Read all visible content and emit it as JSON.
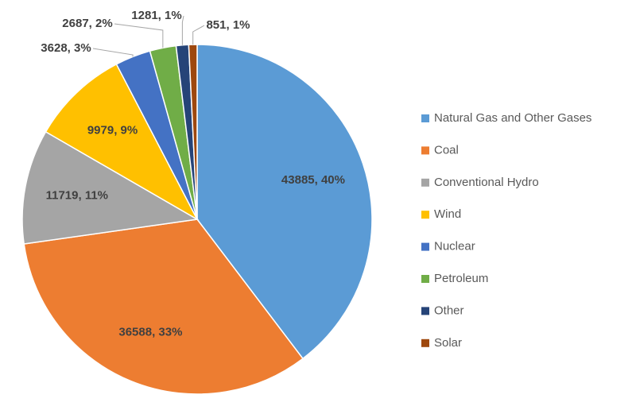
{
  "chart_data": {
    "type": "pie",
    "categories": [
      "Natural Gas and Other Gases",
      "Coal",
      "Conventional Hydro",
      "Wind",
      "Nuclear",
      "Petroleum",
      "Other",
      "Solar"
    ],
    "values": [
      43885,
      36588,
      11719,
      9979,
      3628,
      2687,
      1281,
      851
    ],
    "value_labels": [
      "43885, 40%",
      "36588, 33%",
      "11719, 11%",
      "9979, 9%",
      "3628, 3%",
      "2687, 2%",
      "1281, 1%",
      "851, 1%"
    ],
    "colors": [
      "#5b9bd5",
      "#ed7d31",
      "#a5a5a5",
      "#ffc000",
      "#4472c4",
      "#70ad47",
      "#264478",
      "#9e480e"
    ],
    "legend": "right"
  }
}
